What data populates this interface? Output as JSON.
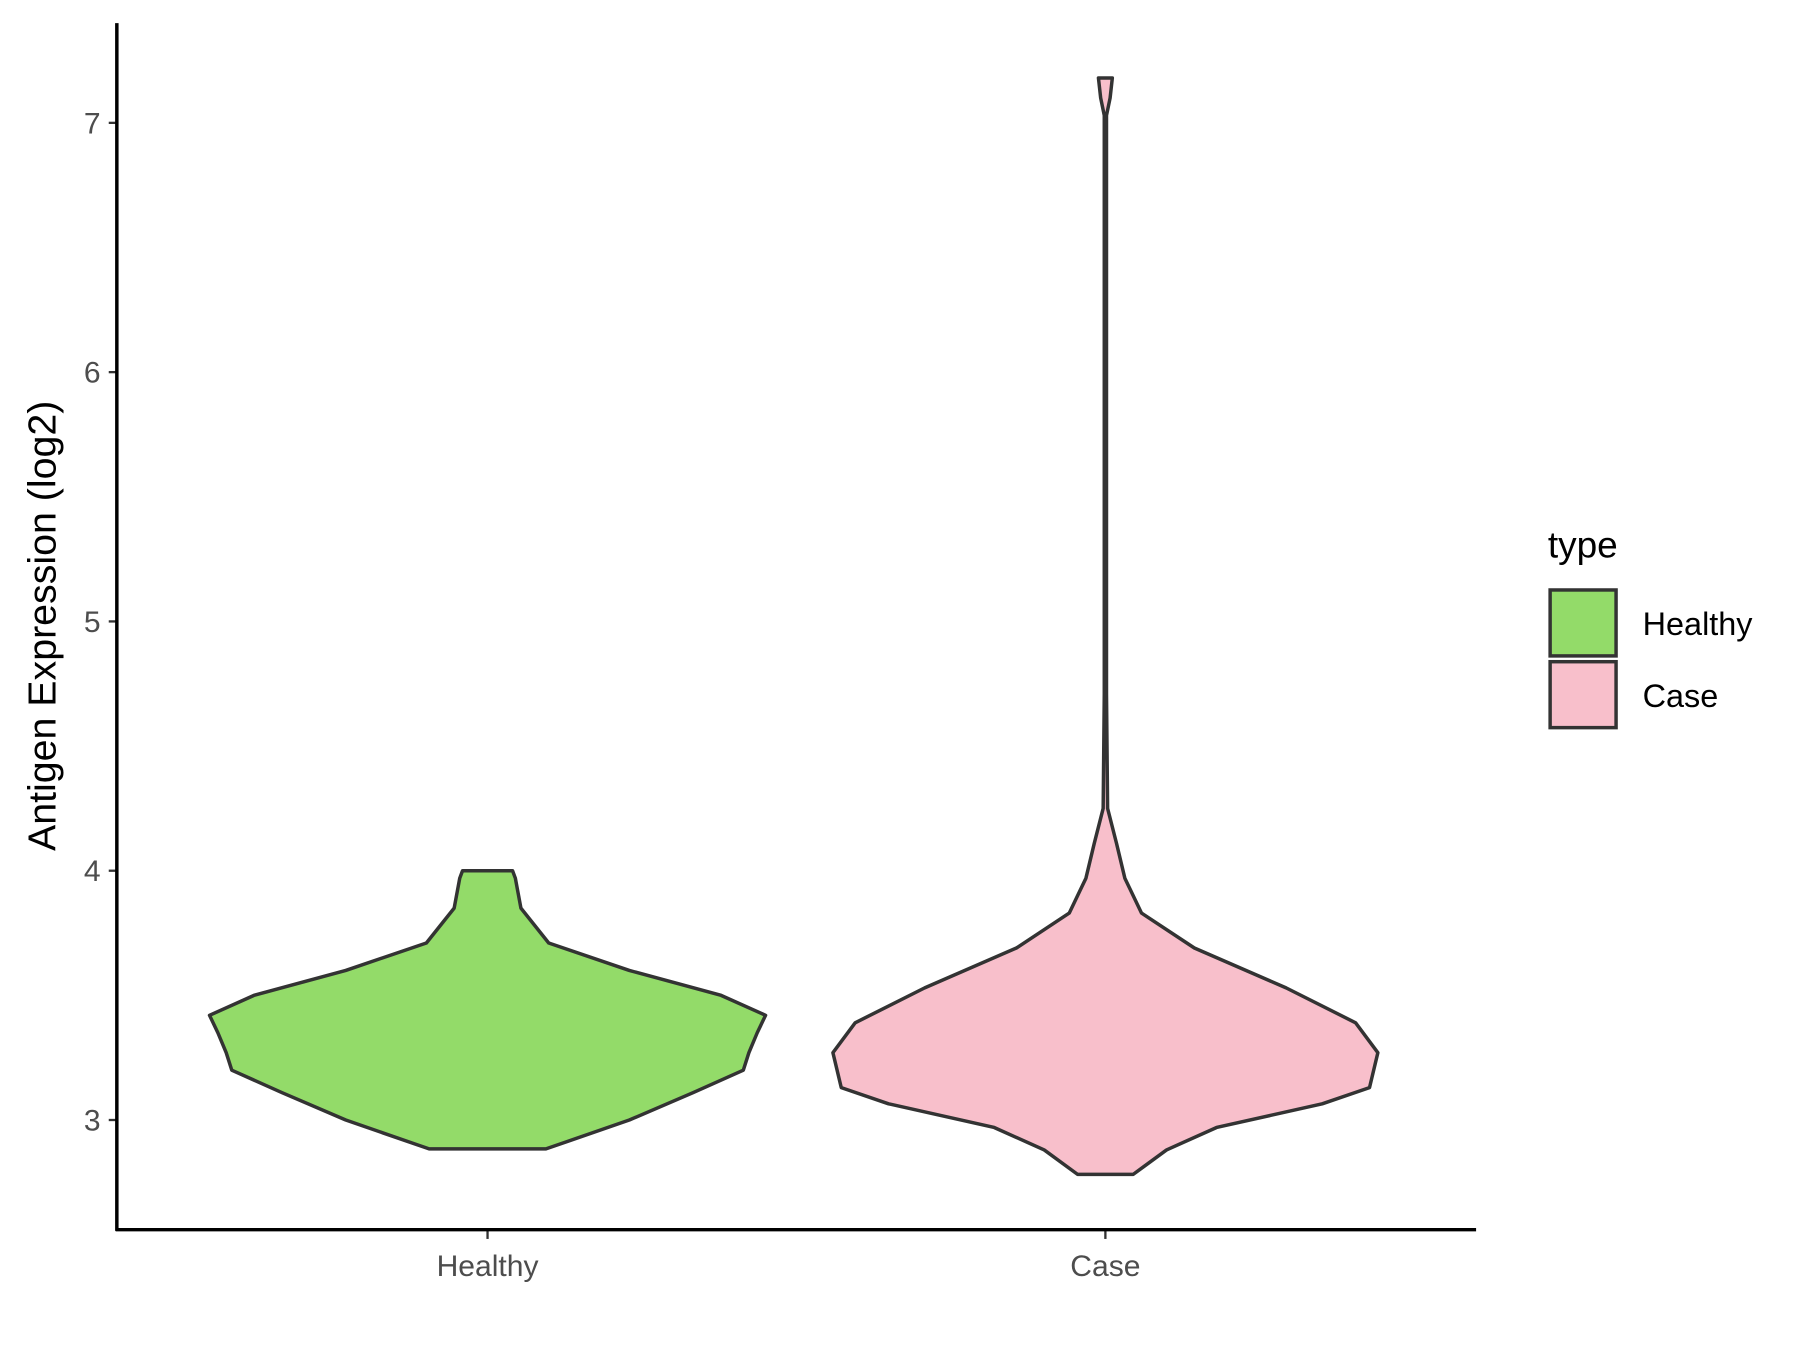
{
  "chart_data": {
    "type": "violin",
    "y_label": "Antigen Expression (log2)",
    "categories": [
      "Healthy",
      "Case"
    ],
    "legend_title": "type",
    "legend": "right",
    "ylim": [
      2.56,
      7.4
    ],
    "yticks": [
      3,
      4,
      5,
      6,
      7
    ],
    "series": [
      {
        "name": "Healthy",
        "color": "#93DB69",
        "y": [
          2.884,
          3.0,
          3.11,
          3.2,
          3.27,
          3.35,
          3.42,
          3.5,
          3.6,
          3.71,
          3.85,
          3.97,
          4.0
        ],
        "width": [
          0.21,
          0.51,
          0.74,
          0.92,
          0.94,
          0.97,
          1.0,
          0.84,
          0.51,
          0.22,
          0.12,
          0.1,
          0.09
        ]
      },
      {
        "name": "Case",
        "color": "#F8BFCB",
        "y": [
          2.782,
          2.88,
          2.97,
          3.065,
          3.13,
          3.27,
          3.39,
          3.53,
          3.69,
          3.83,
          3.97,
          4.11,
          4.25,
          4.71,
          7.03,
          7.1,
          7.18
        ],
        "width": [
          0.1,
          0.22,
          0.4,
          0.78,
          0.95,
          0.98,
          0.9,
          0.65,
          0.32,
          0.13,
          0.07,
          0.04,
          0.008,
          0.004,
          0.004,
          0.017,
          0.025
        ]
      }
    ]
  }
}
